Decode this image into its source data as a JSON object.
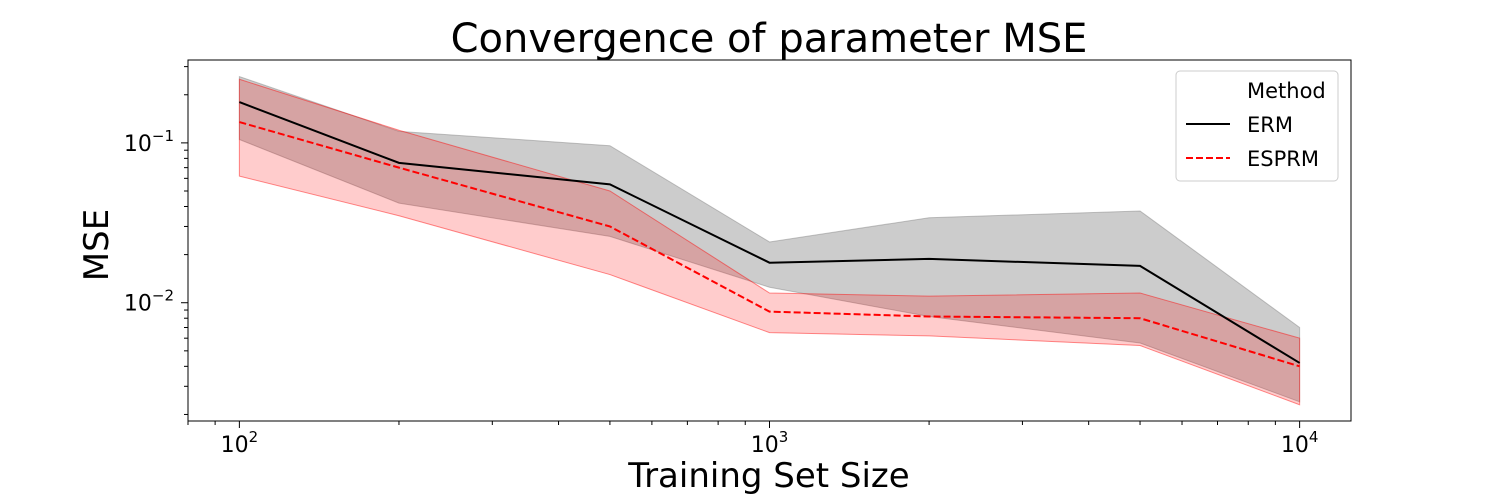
{
  "chart_data": {
    "type": "line",
    "title": "Convergence of parameter MSE",
    "xlabel": "Training Set Size",
    "ylabel": "MSE",
    "xscale": "log",
    "yscale": "log",
    "xlim": [
      80,
      12500
    ],
    "ylim": [
      0.00182,
      0.33
    ],
    "x": [
      100,
      200,
      500,
      1000,
      2000,
      5000,
      10000
    ],
    "x_ticks": [
      {
        "value": 100,
        "base": "10",
        "exp": "2"
      },
      {
        "value": 1000,
        "base": "10",
        "exp": "3"
      },
      {
        "value": 10000,
        "base": "10",
        "exp": "4"
      }
    ],
    "y_ticks": [
      {
        "value": 0.1,
        "base": "10",
        "exp": "−1"
      },
      {
        "value": 0.01,
        "base": "10",
        "exp": "−2"
      }
    ],
    "legend": {
      "title": "Method",
      "placement": "upper right"
    },
    "series": [
      {
        "name": "ERM",
        "color": "#000000",
        "style": "solid",
        "values": [
          0.18,
          0.075,
          0.055,
          0.0178,
          0.0188,
          0.017,
          0.0042
        ],
        "upper": [
          0.26,
          0.118,
          0.096,
          0.024,
          0.034,
          0.0375,
          0.007
        ],
        "lower": [
          0.105,
          0.042,
          0.026,
          0.0125,
          0.0082,
          0.0056,
          0.0024
        ],
        "band_color": "#7f7f7f"
      },
      {
        "name": "ESPRM",
        "color": "#ff0000",
        "style": "dashed",
        "values": [
          0.135,
          0.07,
          0.03,
          0.0088,
          0.0082,
          0.008,
          0.004
        ],
        "upper": [
          0.25,
          0.12,
          0.05,
          0.0115,
          0.011,
          0.0115,
          0.006
        ],
        "lower": [
          0.062,
          0.035,
          0.015,
          0.0065,
          0.0062,
          0.0054,
          0.0023
        ],
        "band_color": "#ff0000"
      }
    ]
  }
}
